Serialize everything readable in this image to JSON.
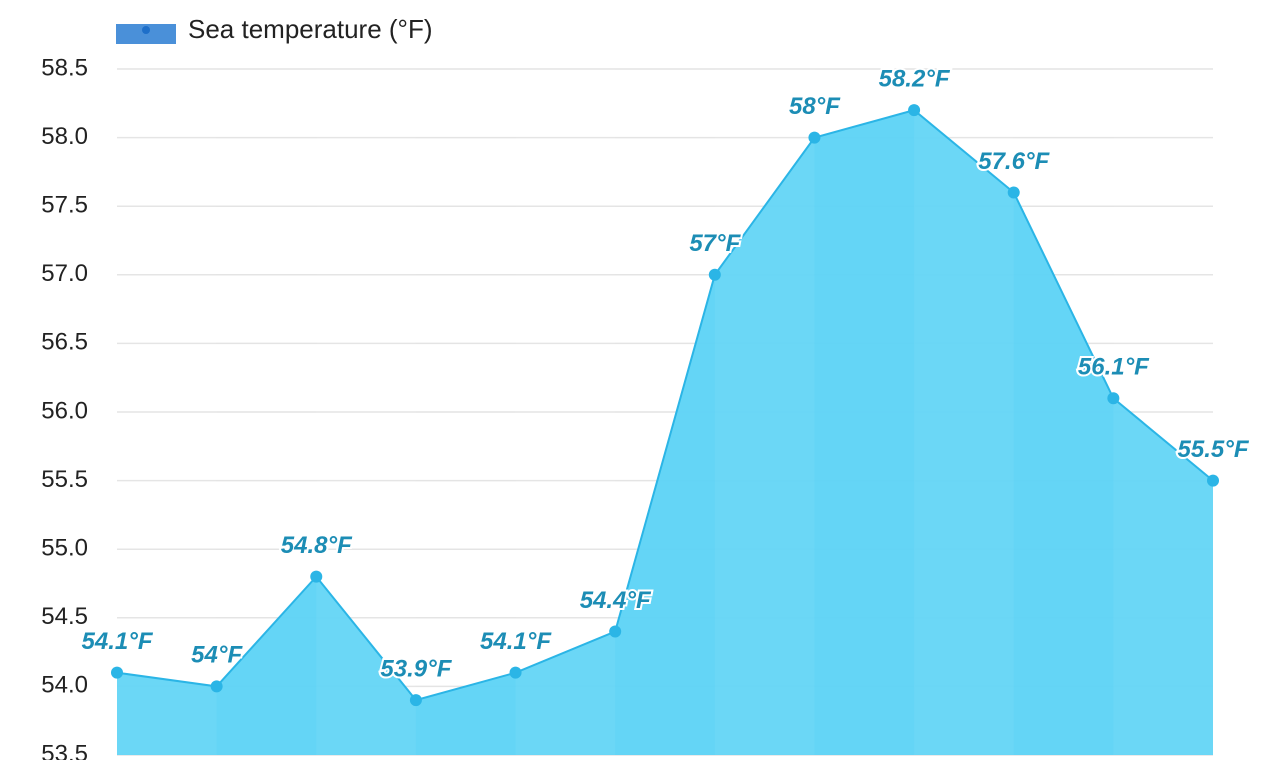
{
  "chart_data": {
    "type": "area",
    "series": [
      {
        "name": "Sea temperature (°F)",
        "color": "#5cd3f5",
        "line_color": "#2bb5e6",
        "values": [
          54.1,
          54,
          54.8,
          53.9,
          54.1,
          54.4,
          57,
          58,
          58.2,
          57.6,
          56.1,
          55.5
        ],
        "value_labels": [
          "54.1°F",
          "54°F",
          "54.8°F",
          "53.9°F",
          "54.1°F",
          "54.4°F",
          "57°F",
          "58°F",
          "58.2°F",
          "57.6°F",
          "56.1°F",
          "55.5°F"
        ]
      }
    ],
    "ylim": [
      53.5,
      58.5
    ],
    "yticks": [
      53.5,
      {
        "value": 54,
        "label": "54.0"
      },
      54.5,
      {
        "value": 55,
        "label": "55.0"
      },
      55.5,
      {
        "value": 56,
        "label": "56.0"
      },
      56.5,
      {
        "value": 57,
        "label": "57.0"
      },
      57.5,
      {
        "value": 58,
        "label": "58.0"
      },
      58.5
    ],
    "grid": true
  }
}
